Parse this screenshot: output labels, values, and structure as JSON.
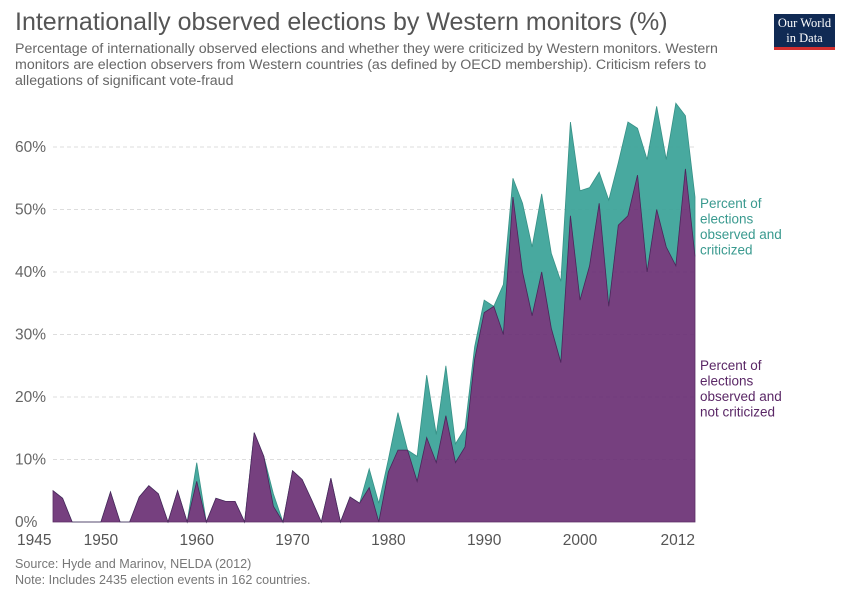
{
  "header": {
    "title": "Internationally observed elections by Western monitors (%)",
    "subtitle": "Percentage of internationally observed elections and whether they were criticized by Western monitors. Western monitors are election observers from Western countries (as defined by OECD membership). Criticism refers to allegations of significant vote-fraud"
  },
  "logo": {
    "line1": "Our World",
    "line2": "in Data"
  },
  "footer": {
    "source": "Source: Hyde and Marinov, NELDA (2012)",
    "note": "Note: Includes 2435 election events in 162 countries."
  },
  "colors": {
    "criticized": "#3fa59a",
    "not_criticized": "#6b3075",
    "grid": "#dddddd"
  },
  "chart_data": {
    "type": "area",
    "stacked": true,
    "title": "Internationally observed elections by Western monitors (%)",
    "xlim": [
      1945,
      2012
    ],
    "ylim": [
      0,
      70
    ],
    "y_ticks": [
      0,
      10,
      20,
      30,
      40,
      50,
      60
    ],
    "y_tick_labels": [
      "0%",
      "10%",
      "20%",
      "30%",
      "40%",
      "50%",
      "60%"
    ],
    "x_ticks": [
      1945,
      1950,
      1960,
      1970,
      1980,
      1990,
      2000,
      2012
    ],
    "grid": "horizontal dashed",
    "x": [
      1945,
      1946,
      1947,
      1948,
      1949,
      1950,
      1951,
      1952,
      1953,
      1954,
      1955,
      1956,
      1957,
      1958,
      1959,
      1960,
      1961,
      1962,
      1963,
      1964,
      1965,
      1966,
      1967,
      1968,
      1969,
      1970,
      1971,
      1972,
      1973,
      1974,
      1975,
      1976,
      1977,
      1978,
      1979,
      1980,
      1981,
      1982,
      1983,
      1984,
      1985,
      1986,
      1987,
      1988,
      1989,
      1990,
      1991,
      1992,
      1993,
      1994,
      1995,
      1996,
      1997,
      1998,
      1999,
      2000,
      2001,
      2002,
      2003,
      2004,
      2005,
      2006,
      2007,
      2008,
      2009,
      2010,
      2011,
      2012
    ],
    "series": [
      {
        "name": "Percent of elections observed and not criticized",
        "values": [
          5,
          3.8,
          0,
          0,
          0,
          0,
          4.8,
          0,
          0,
          4,
          5.8,
          4.5,
          0,
          5,
          0,
          6.5,
          0,
          3.8,
          3.3,
          3.3,
          0,
          14.3,
          10.5,
          2.5,
          0,
          8.2,
          6.8,
          3.5,
          0,
          7,
          0,
          4,
          3,
          5.5,
          0,
          8,
          11.5,
          11.5,
          6.5,
          13.5,
          9.5,
          17,
          9.5,
          12,
          26,
          33.5,
          34.5,
          30,
          52,
          40,
          33,
          40,
          31,
          25.5,
          49,
          35.5,
          41,
          51,
          34.5,
          47.5,
          49,
          55.5,
          40,
          50,
          44,
          41,
          56.5,
          42.5
        ]
      },
      {
        "name": "Percent of elections observed and criticized",
        "values": [
          0,
          0,
          0,
          0,
          0,
          0,
          0,
          0,
          0,
          0,
          0,
          0,
          0,
          0,
          0,
          3,
          0,
          0,
          0,
          0,
          0,
          0,
          0,
          2,
          0,
          0,
          0,
          0,
          0,
          0,
          0,
          0,
          0,
          3,
          3,
          2,
          6,
          0,
          4,
          10,
          4.5,
          8,
          3,
          3,
          2,
          2,
          0,
          8,
          3,
          11,
          11,
          12.5,
          12,
          13,
          15,
          17.5,
          12.5,
          5,
          17,
          10,
          15,
          7.5,
          18,
          16.5,
          14,
          26,
          8.5,
          9.5
        ]
      }
    ],
    "legend": "right of plot, aligned with each series end"
  }
}
